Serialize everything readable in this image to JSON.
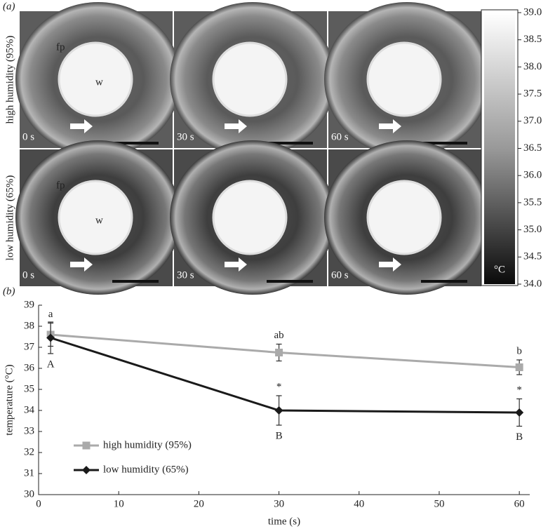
{
  "panel_a": {
    "label": "(a)",
    "rows": [
      {
        "label": "high humidity (95%)",
        "images": [
          {
            "time": "0 s",
            "labels": [
              "fp",
              "w"
            ]
          },
          {
            "time": "30 s"
          },
          {
            "time": "60 s"
          }
        ]
      },
      {
        "label": "low humidity (65%)",
        "images": [
          {
            "time": "0 s",
            "labels": [
              "fp",
              "w"
            ]
          },
          {
            "time": "30 s"
          },
          {
            "time": "60 s"
          }
        ]
      }
    ],
    "colorbar": {
      "unit": "°C",
      "lim": [
        34,
        39
      ],
      "ticks": [
        {
          "value": 39,
          "label": "39.0"
        },
        {
          "value": 38.5,
          "label": "38.5"
        },
        {
          "value": 38,
          "label": "38.0"
        },
        {
          "value": 37.5,
          "label": "37.5"
        },
        {
          "value": 37,
          "label": "37.0"
        },
        {
          "value": 36.5,
          "label": "36.5"
        },
        {
          "value": 36,
          "label": "36.0"
        },
        {
          "value": 35.5,
          "label": "35.5"
        },
        {
          "value": 35,
          "label": "35.0"
        },
        {
          "value": 34.5,
          "label": "34.5"
        },
        {
          "value": 34,
          "label": "34.0"
        }
      ]
    }
  },
  "chart_data": {
    "type": "line",
    "label": "(b)",
    "x_label": "time (s)",
    "y_label": "temperature (°C)",
    "x": [
      1.5,
      30,
      60
    ],
    "series": [
      {
        "name": "high humidity (95%)",
        "color": "#aaaaaa",
        "marker": "square",
        "values": [
          37.6,
          36.75,
          36.05
        ],
        "errors": [
          0.55,
          0.4,
          0.35
        ],
        "labels_above": [
          "a",
          "ab",
          "b"
        ]
      },
      {
        "name": "low humidity (65%)",
        "color": "#1a1a1a",
        "marker": "diamond",
        "values": [
          37.45,
          34.0,
          33.9
        ],
        "errors": [
          0.75,
          0.7,
          0.65
        ],
        "labels_above": [
          null,
          "*",
          "*"
        ],
        "labels_below": [
          "A",
          "B",
          "B"
        ]
      }
    ],
    "xlim": [
      0,
      61.3
    ],
    "ylim": [
      30,
      39
    ],
    "xticks": [
      0,
      10,
      20,
      30,
      40,
      50,
      60
    ],
    "yticks": [
      30,
      31,
      32,
      33,
      34,
      35,
      36,
      37,
      38,
      39
    ],
    "legend": "lower left"
  }
}
